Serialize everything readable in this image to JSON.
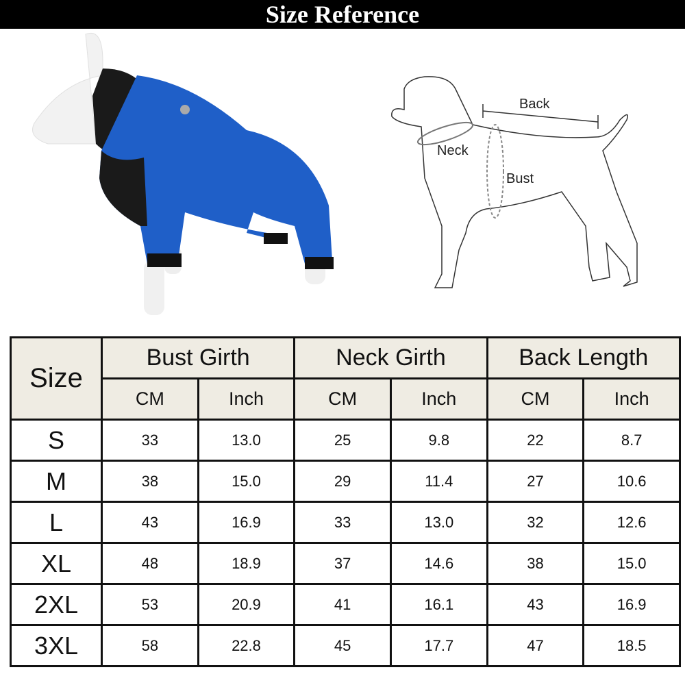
{
  "title": "Size Reference",
  "diagram_labels": {
    "back": "Back",
    "neck": "Neck",
    "bust": "Bust"
  },
  "colors": {
    "coat_blue": "#1f5fc8",
    "coat_black": "#1a1a1a",
    "header_bg": "#efece3"
  },
  "table": {
    "size_header": "Size",
    "groups": [
      "Bust Girth",
      "Neck Girth",
      "Back Length"
    ],
    "units": [
      "CM",
      "Inch",
      "CM",
      "Inch",
      "CM",
      "Inch"
    ],
    "rows": [
      [
        "S",
        "33",
        "13.0",
        "25",
        "9.8",
        "22",
        "8.7"
      ],
      [
        "M",
        "38",
        "15.0",
        "29",
        "11.4",
        "27",
        "10.6"
      ],
      [
        "L",
        "43",
        "16.9",
        "33",
        "13.0",
        "32",
        "12.6"
      ],
      [
        "XL",
        "48",
        "18.9",
        "37",
        "14.6",
        "38",
        "15.0"
      ],
      [
        "2XL",
        "53",
        "20.9",
        "41",
        "16.1",
        "43",
        "16.9"
      ],
      [
        "3XL",
        "58",
        "22.8",
        "45",
        "17.7",
        "47",
        "18.5"
      ]
    ]
  }
}
